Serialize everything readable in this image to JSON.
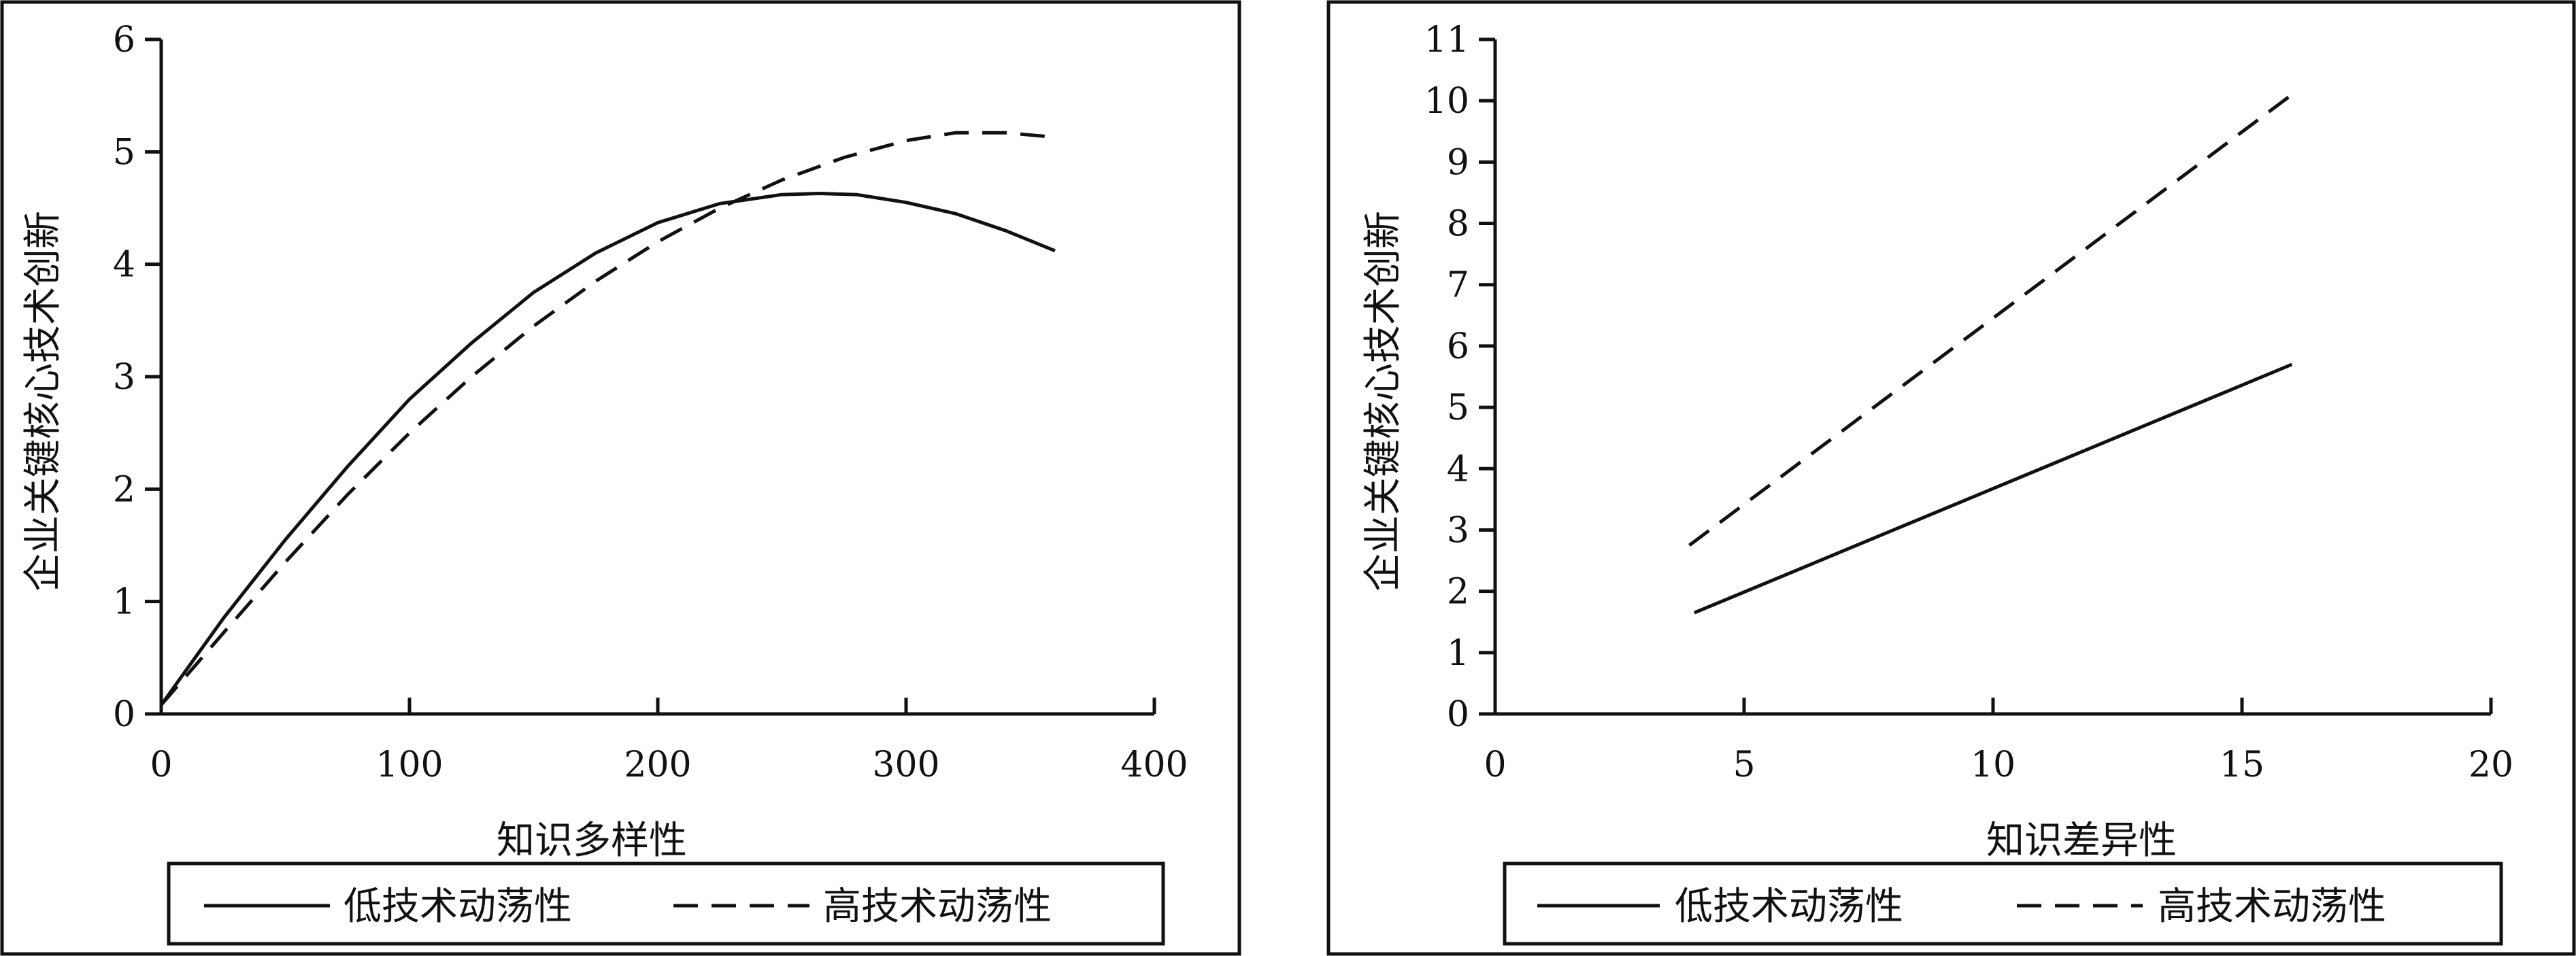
{
  "chart_data": [
    {
      "type": "line",
      "title": "",
      "xlabel": "知识多样性",
      "ylabel": "企业关键核心技术创新",
      "xlim": [
        0,
        400
      ],
      "ylim": [
        0,
        6
      ],
      "xticks": [
        0,
        100,
        200,
        300,
        400
      ],
      "yticks": [
        0,
        1,
        2,
        3,
        4,
        5,
        6
      ],
      "grid": false,
      "legend_position": "bottom",
      "series": [
        {
          "name": "低技术动荡性",
          "style": "solid",
          "x": [
            0,
            25,
            50,
            75,
            100,
            125,
            150,
            175,
            200,
            225,
            250,
            265,
            280,
            300,
            320,
            340,
            360
          ],
          "y": [
            0.08,
            0.85,
            1.55,
            2.2,
            2.8,
            3.3,
            3.75,
            4.1,
            4.37,
            4.54,
            4.62,
            4.63,
            4.62,
            4.55,
            4.45,
            4.3,
            4.12
          ]
        },
        {
          "name": "高技术动荡性",
          "style": "dashed",
          "x": [
            0,
            25,
            50,
            75,
            100,
            125,
            150,
            175,
            200,
            225,
            250,
            275,
            300,
            320,
            340,
            360
          ],
          "y": [
            0.08,
            0.72,
            1.35,
            1.95,
            2.5,
            3.0,
            3.45,
            3.85,
            4.2,
            4.5,
            4.75,
            4.95,
            5.1,
            5.17,
            5.17,
            5.13
          ]
        }
      ]
    },
    {
      "type": "line",
      "title": "",
      "xlabel": "知识差异性",
      "ylabel": "企业关键核心技术创新",
      "xlim": [
        0,
        20
      ],
      "ylim": [
        0,
        11
      ],
      "xticks": [
        0,
        5,
        10,
        15,
        20
      ],
      "yticks": [
        0,
        1,
        2,
        3,
        4,
        5,
        6,
        7,
        8,
        9,
        10,
        11
      ],
      "grid": false,
      "legend_position": "bottom",
      "series": [
        {
          "name": "低技术动荡性",
          "style": "solid",
          "x": [
            4,
            16
          ],
          "y": [
            1.65,
            5.7
          ]
        },
        {
          "name": "高技术动荡性",
          "style": "dashed",
          "x": [
            3.9,
            16
          ],
          "y": [
            2.75,
            10.1
          ]
        }
      ]
    }
  ]
}
